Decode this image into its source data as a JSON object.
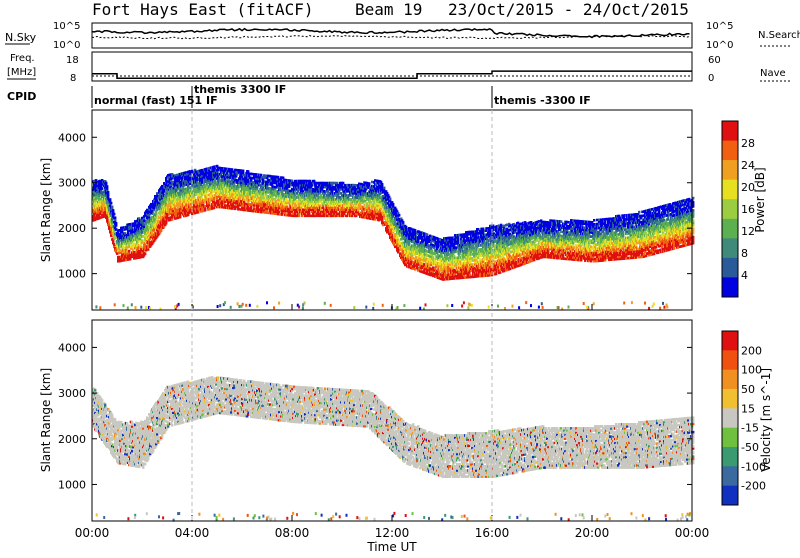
{
  "title": {
    "radar": "Fort Hays East (fitACF)",
    "beam": "Beam 19",
    "dates": "23/Oct/2015 - 24/Oct/2015"
  },
  "header_panels": {
    "noise_left_label": "N.Sky",
    "noise_left_ticks": [
      "10^5",
      "10^0"
    ],
    "noise_right_label": "N.Search",
    "noise_right_ticks": [
      "10^5",
      "10^0"
    ],
    "freq_label_line1": "Freq.",
    "freq_label_line2": "[MHz]",
    "freq_ticks": [
      "18",
      "8"
    ],
    "nave_label": "Nave",
    "nave_ticks": [
      "60",
      "0"
    ],
    "cpid_label": "CPID",
    "cpid_segments": [
      {
        "label": "normal (fast) 151 IF",
        "start_hour": 0
      },
      {
        "label": "themis 3300 IF",
        "start_hour": 4
      },
      {
        "label": "themis -3300 IF",
        "start_hour": 16
      }
    ]
  },
  "chart_data": [
    {
      "type": "heatmap",
      "name": "power",
      "ylabel": "Slant Range [km]",
      "yticks": [
        "4000",
        "3000",
        "2000",
        "1000"
      ],
      "ylim": [
        200,
        4600
      ],
      "xlim": [
        0,
        24
      ],
      "colorbar": {
        "label": "Power [dB]",
        "ticks": [
          "28",
          "24",
          "20",
          "16",
          "12",
          "8",
          "4"
        ],
        "colors": [
          "#0000e0",
          "#2a5a9a",
          "#3f8a7a",
          "#5cb050",
          "#9ccc40",
          "#e6e020",
          "#f0a020",
          "#f06010",
          "#e01010"
        ]
      },
      "scatter_band": [
        {
          "x": 0.0,
          "ylow": 2300,
          "yhigh": 2900
        },
        {
          "x": 0.5,
          "ylow": 2400,
          "yhigh": 2900
        },
        {
          "x": 1.0,
          "ylow": 1400,
          "yhigh": 1800
        },
        {
          "x": 2.0,
          "ylow": 1500,
          "yhigh": 2100
        },
        {
          "x": 3.0,
          "ylow": 2300,
          "yhigh": 3000
        },
        {
          "x": 5.0,
          "ylow": 2600,
          "yhigh": 3200
        },
        {
          "x": 8.0,
          "ylow": 2400,
          "yhigh": 2900
        },
        {
          "x": 10.5,
          "ylow": 2400,
          "yhigh": 2800
        },
        {
          "x": 11.5,
          "ylow": 2300,
          "yhigh": 2900
        },
        {
          "x": 12.5,
          "ylow": 1300,
          "yhigh": 1900
        },
        {
          "x": 14.0,
          "ylow": 1000,
          "yhigh": 1600
        },
        {
          "x": 16.0,
          "ylow": 1100,
          "yhigh": 1900
        },
        {
          "x": 18.0,
          "ylow": 1500,
          "yhigh": 2000
        },
        {
          "x": 20.0,
          "ylow": 1400,
          "yhigh": 2000
        },
        {
          "x": 22.0,
          "ylow": 1500,
          "yhigh": 2200
        },
        {
          "x": 24.0,
          "ylow": 1800,
          "yhigh": 2500
        }
      ]
    },
    {
      "type": "heatmap",
      "name": "velocity",
      "ylabel": "Slant Range [km]",
      "yticks": [
        "4000",
        "3000",
        "2000",
        "1000"
      ],
      "ylim": [
        200,
        4600
      ],
      "xlim": [
        0,
        24
      ],
      "xlabel": "Time UT",
      "xticks": [
        "00:00",
        "04:00",
        "08:00",
        "12:00",
        "16:00",
        "20:00",
        "00:00"
      ],
      "colorbar": {
        "label": "Velocity [m s^-1]",
        "ticks": [
          "200",
          "100",
          "50",
          "15",
          "-15",
          "-50",
          "-100",
          "-200"
        ],
        "colors": [
          "#1030c0",
          "#3a6aa0",
          "#3a9a70",
          "#70c040",
          "#c8c8c0",
          "#f0c030",
          "#f09020",
          "#f05010",
          "#e01010"
        ]
      },
      "scatter_band": [
        {
          "x": 0.0,
          "ylow": 2400,
          "yhigh": 3000
        },
        {
          "x": 1.0,
          "ylow": 1600,
          "yhigh": 2200
        },
        {
          "x": 2.0,
          "ylow": 1500,
          "yhigh": 2200
        },
        {
          "x": 3.0,
          "ylow": 2400,
          "yhigh": 3000
        },
        {
          "x": 5.0,
          "ylow": 2700,
          "yhigh": 3200
        },
        {
          "x": 8.0,
          "ylow": 2500,
          "yhigh": 3000
        },
        {
          "x": 11.0,
          "ylow": 2400,
          "yhigh": 2900
        },
        {
          "x": 12.5,
          "ylow": 1600,
          "yhigh": 2200
        },
        {
          "x": 14.0,
          "ylow": 1300,
          "yhigh": 1900
        },
        {
          "x": 16.0,
          "ylow": 1300,
          "yhigh": 2000
        },
        {
          "x": 18.0,
          "ylow": 1500,
          "yhigh": 2100
        },
        {
          "x": 20.0,
          "ylow": 1500,
          "yhigh": 2100
        },
        {
          "x": 22.0,
          "ylow": 1500,
          "yhigh": 2200
        },
        {
          "x": 24.0,
          "ylow": 1600,
          "yhigh": 2300
        }
      ]
    }
  ]
}
